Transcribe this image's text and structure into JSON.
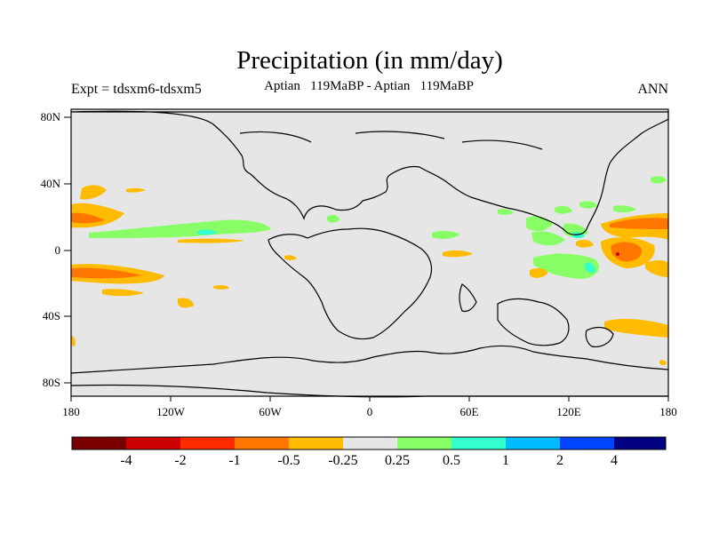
{
  "title": "Precipitation (in mm/day)",
  "subtitle": "Aptian   119MaBP - Aptian   119MaBP",
  "experiment_label": "Expt = tdsxm6-tdsxm5",
  "season_label": "ANN",
  "axes": {
    "lat_ticks": [
      "80N",
      "40N",
      "0",
      "40S",
      "80S"
    ],
    "lon_ticks": [
      "180",
      "120W",
      "60W",
      "0",
      "60E",
      "120E",
      "180"
    ]
  },
  "colorbar": {
    "colors": [
      "#7a0000",
      "#cc0000",
      "#ff2a00",
      "#ff7700",
      "#ffbb00",
      "#e6e6e6",
      "#88ff66",
      "#33ffcc",
      "#00bbff",
      "#0044ff",
      "#000080"
    ],
    "labels": [
      "-4",
      "-2",
      "-1",
      "-0.5",
      "-0.25",
      "0.25",
      "0.5",
      "1",
      "2",
      "4"
    ]
  },
  "colors": {
    "ocean": "#e6e6e6",
    "coast": "#000000"
  }
}
